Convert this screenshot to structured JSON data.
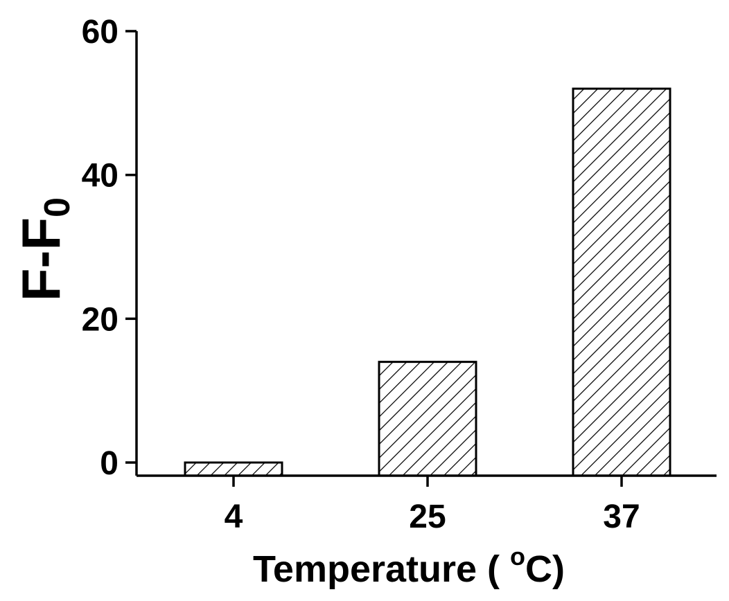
{
  "chart_data": {
    "type": "bar",
    "categories": [
      "4",
      "25",
      "37"
    ],
    "values": [
      0,
      14,
      52
    ],
    "xlabel": "Temperature ( °C)",
    "xlabel_parts": {
      "before": "Temperature ( ",
      "sup": "o",
      "after": "C)"
    },
    "ylabel": "F-F0",
    "ylabel_parts": {
      "main": "F-F",
      "sub": "0"
    },
    "ylim": [
      0,
      60
    ],
    "yticks": [
      "0",
      "20",
      "40",
      "60"
    ],
    "bar_fill": "diagonal-hatch",
    "colors": {
      "stroke": "#000000",
      "background": "#ffffff"
    },
    "grid": false,
    "legend": "none"
  }
}
